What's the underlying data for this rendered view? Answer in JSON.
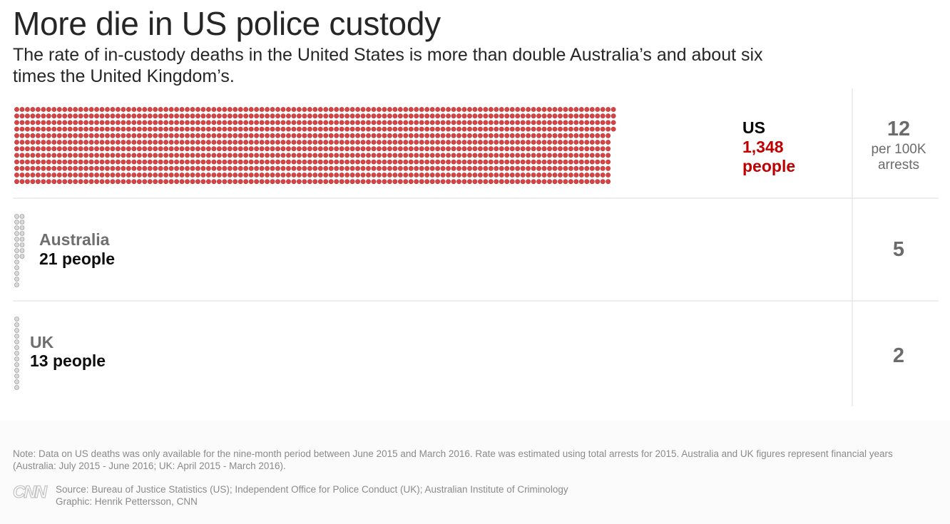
{
  "title": "More die in US police custody",
  "subtitle": "The rate of in-custody deaths in the United States is more than double Australia’s and about six times the United Kingdom’s.",
  "chart_data": {
    "type": "unit",
    "series": [
      {
        "name": "US",
        "deaths": 1348,
        "deaths_label": "1,348",
        "unit": "people",
        "rate": 12,
        "rate_label": "12",
        "rate_unit": "per 100K arrests",
        "dot_color": "#d64545"
      },
      {
        "name": "Australia",
        "deaths": 21,
        "deaths_label": "21 people",
        "rate": 5,
        "rate_label": "5",
        "dot_color": "#9a9a9a"
      },
      {
        "name": "UK",
        "deaths": 13,
        "deaths_label": "13 people",
        "rate": 2,
        "rate_label": "2",
        "dot_color": "#9a9a9a"
      }
    ]
  },
  "colors": {
    "us_dot": "#d64545",
    "other_dot": "#9a9a9a",
    "us_label": "#c00000",
    "rule": "#dddddd"
  },
  "note": "Note: Data on US deaths was only available for the nine-month period between June 2015 and March 2016. Rate was estimated using total arrests for 2015. Australia and UK figures represent financial years (Australia: July 2015 - June 2016; UK: April 2015 - March 2016).",
  "logo": "CNN",
  "source": "Source: Bureau of Justice Statistics (US); Independent Office for Police Conduct (UK); Australian Institute of Criminology",
  "credit": "Graphic: Henrik Pettersson, CNN"
}
